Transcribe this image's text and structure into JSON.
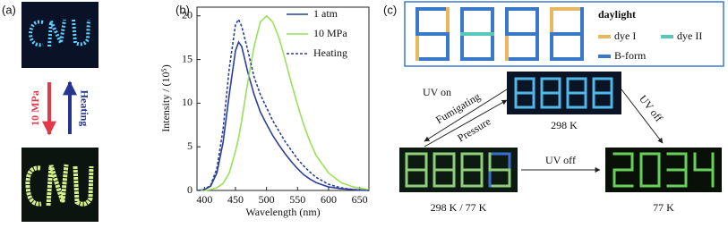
{
  "panel_a": {
    "label": "(a)",
    "down_arrow": "10 MPa",
    "up_arrow": "Heating"
  },
  "chart_data": {
    "type": "line",
    "label": "(b)",
    "xlabel": "Wavelength (nm)",
    "ylabel": "Intensity / (10⁵)",
    "x": [
      390,
      400,
      410,
      420,
      430,
      440,
      450,
      455,
      460,
      470,
      480,
      490,
      500,
      510,
      520,
      530,
      540,
      550,
      560,
      570,
      580,
      600,
      620,
      640,
      665
    ],
    "series": [
      {
        "name": "1 atm",
        "color": "#2a3f9a",
        "linestyle": "solid",
        "values": [
          0,
          0.1,
          0.5,
          2,
          5.5,
          11,
          16,
          17,
          16.5,
          13.5,
          11,
          9,
          7.6,
          6.3,
          5.2,
          4.2,
          3.3,
          2.5,
          1.8,
          1.3,
          0.9,
          0.4,
          0.2,
          0.1,
          0
        ]
      },
      {
        "name": "10 MPa",
        "color": "#9ae05a",
        "linestyle": "solid",
        "values": [
          0,
          0,
          0.1,
          0.3,
          0.8,
          2,
          4.5,
          6,
          8,
          12.5,
          16.5,
          19.3,
          20,
          19.3,
          17.5,
          15,
          12.3,
          9.8,
          7.5,
          5.6,
          4,
          2,
          0.9,
          0.4,
          0.1
        ]
      },
      {
        "name": "Heating",
        "color": "#2a3f9a",
        "linestyle": "dashed",
        "values": [
          0,
          0.1,
          0.6,
          2.5,
          7,
          14,
          19,
          19.6,
          18.8,
          16,
          13,
          11,
          9.5,
          8,
          6.8,
          5.6,
          4.6,
          3.6,
          2.8,
          2.1,
          1.5,
          0.7,
          0.3,
          0.1,
          0
        ]
      }
    ],
    "xlim": [
      388,
      665
    ],
    "xticks": [
      400,
      450,
      500,
      550,
      600,
      650
    ],
    "ylim": [
      0,
      21
    ],
    "yticks": [
      0,
      5,
      10,
      15,
      20
    ],
    "legend": "upper right"
  },
  "panel_c": {
    "label": "(c)",
    "legend_title": "daylight",
    "legend": [
      "dye I",
      "dye II",
      "B-form"
    ],
    "photos": [
      "298 K",
      "298 K / 77 K",
      "77 K"
    ],
    "arrows": [
      "UV on",
      "Fumigating",
      "Pressure",
      "UV off",
      "UV off"
    ]
  }
}
